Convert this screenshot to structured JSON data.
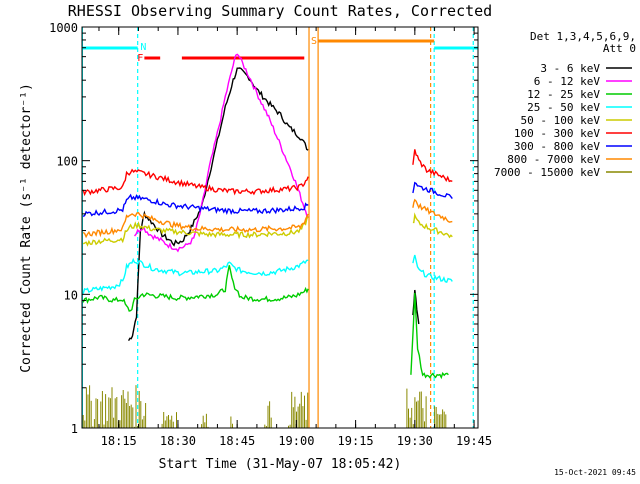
{
  "chart_data": {
    "type": "line",
    "title": "RHESSI Observing Summary Count Rates, Corrected",
    "xlabel": "Start Time (31-May-07 18:05:42)",
    "ylabel": "Corrected Count Rate (s⁻¹ detector⁻¹)",
    "x_unit": "minutes after 18:00 UT",
    "x_ticks": [
      {
        "x": 15,
        "label": "18:15"
      },
      {
        "x": 30,
        "label": "18:30"
      },
      {
        "x": 45,
        "label": "18:45"
      },
      {
        "x": 60,
        "label": "19:00"
      },
      {
        "x": 75,
        "label": "19:15"
      },
      {
        "x": 90,
        "label": "19:30"
      },
      {
        "x": 105,
        "label": "19:45"
      }
    ],
    "y_ticks": [
      {
        "y": 1,
        "label": "1"
      },
      {
        "y": 10,
        "label": "10"
      },
      {
        "y": 100,
        "label": "100"
      },
      {
        "y": 1000,
        "label": "1000"
      }
    ],
    "xlim": [
      5.7,
      106
    ],
    "ylim": [
      1,
      1000
    ],
    "yscale": "log",
    "legend_title": "Det 1,3,4,5,6,9,",
    "legend_subtitle": "Att 0",
    "legend_position": "right",
    "timestamp": "15-Oct-2021 09:45",
    "series": [
      {
        "name": "3 - 6 keV",
        "color": "#000000",
        "points": [
          [
            17.5,
            4.5
          ],
          [
            18.5,
            5
          ],
          [
            19.5,
            7
          ],
          [
            20.5,
            30
          ],
          [
            21.5,
            40
          ],
          [
            24,
            33
          ],
          [
            26,
            28
          ],
          [
            29,
            24
          ],
          [
            31,
            25
          ],
          [
            33,
            30
          ],
          [
            36,
            45
          ],
          [
            38,
            80
          ],
          [
            40,
            140
          ],
          [
            42,
            250
          ],
          [
            44,
            400
          ],
          [
            45,
            480
          ],
          [
            46,
            470
          ],
          [
            48,
            420
          ],
          [
            50,
            340
          ],
          [
            53,
            270
          ],
          [
            56,
            220
          ],
          [
            58,
            180
          ],
          [
            59,
            170
          ],
          [
            61,
            150
          ],
          [
            63,
            120
          ]
        ],
        "segment2": [
          [
            89.5,
            7
          ],
          [
            90,
            11
          ],
          [
            90.5,
            8
          ],
          [
            91,
            6
          ]
        ]
      },
      {
        "name": "6 - 12 keV",
        "color": "#ff00ff",
        "points": [
          [
            19,
            28
          ],
          [
            21,
            32
          ],
          [
            23,
            28
          ],
          [
            26,
            25
          ],
          [
            28,
            23
          ],
          [
            30,
            22
          ],
          [
            32,
            23
          ],
          [
            34,
            26
          ],
          [
            36,
            45
          ],
          [
            38,
            90
          ],
          [
            40,
            160
          ],
          [
            42,
            300
          ],
          [
            44,
            520
          ],
          [
            45,
            650
          ],
          [
            46,
            560
          ],
          [
            48,
            430
          ],
          [
            50,
            320
          ],
          [
            53,
            210
          ],
          [
            56,
            130
          ],
          [
            59,
            80
          ],
          [
            62,
            45
          ],
          [
            63,
            38
          ]
        ],
        "segment2": []
      },
      {
        "name": "12 - 25 keV",
        "color": "#00cc00",
        "points": [
          [
            6,
            9
          ],
          [
            10,
            9.5
          ],
          [
            14,
            9
          ],
          [
            16,
            9.2
          ],
          [
            17,
            8
          ],
          [
            18,
            7.5
          ],
          [
            19,
            9
          ],
          [
            21,
            10
          ],
          [
            24,
            9.8
          ],
          [
            27,
            9.6
          ],
          [
            30,
            9.4
          ],
          [
            33,
            9.5
          ],
          [
            37,
            9.8
          ],
          [
            40,
            10
          ],
          [
            42,
            11
          ],
          [
            43,
            16
          ],
          [
            44,
            12
          ],
          [
            46,
            9.5
          ],
          [
            49,
            9.3
          ],
          [
            52,
            9.2
          ],
          [
            55,
            9.3
          ],
          [
            58,
            9.5
          ],
          [
            60,
            9.8
          ],
          [
            62,
            10.5
          ],
          [
            63,
            11
          ]
        ],
        "segment2": [
          [
            89,
            2.5
          ],
          [
            90,
            10
          ],
          [
            90.7,
            4
          ],
          [
            92,
            2.5
          ],
          [
            96,
            2.5
          ],
          [
            98.5,
            2.5
          ]
        ]
      },
      {
        "name": "25 - 50 keV",
        "color": "#00ffff",
        "points": [
          [
            6,
            10.5
          ],
          [
            10,
            11
          ],
          [
            14,
            11.5
          ],
          [
            16,
            12.5
          ],
          [
            17,
            16
          ],
          [
            18,
            17
          ],
          [
            19,
            18
          ],
          [
            21,
            17
          ],
          [
            24,
            15.5
          ],
          [
            27,
            15
          ],
          [
            30,
            14.5
          ],
          [
            33,
            14.5
          ],
          [
            36,
            14.8
          ],
          [
            40,
            15
          ],
          [
            42,
            16
          ],
          [
            43,
            17
          ],
          [
            44,
            16
          ],
          [
            46,
            15
          ],
          [
            49,
            14.6
          ],
          [
            52,
            14.4
          ],
          [
            55,
            14.8
          ],
          [
            58,
            15.5
          ],
          [
            61,
            16.5
          ],
          [
            63,
            18
          ]
        ],
        "segment2": [
          [
            89.5,
            17
          ],
          [
            90,
            19
          ],
          [
            91,
            15
          ],
          [
            94,
            13.5
          ],
          [
            97,
            13
          ],
          [
            99.5,
            12.5
          ]
        ]
      },
      {
        "name": "50 - 100 keV",
        "color": "#cccc00",
        "points": [
          [
            6,
            24
          ],
          [
            10,
            25
          ],
          [
            14,
            25.5
          ],
          [
            16,
            26
          ],
          [
            17,
            30
          ],
          [
            18,
            32
          ],
          [
            20,
            33
          ],
          [
            23,
            31
          ],
          [
            26,
            30
          ],
          [
            29,
            29.5
          ],
          [
            32,
            29
          ],
          [
            35,
            28.5
          ],
          [
            38,
            28
          ],
          [
            41,
            28
          ],
          [
            44,
            28
          ],
          [
            47,
            28
          ],
          [
            50,
            28
          ],
          [
            53,
            28.5
          ],
          [
            56,
            28.5
          ],
          [
            59,
            29
          ],
          [
            61,
            30
          ],
          [
            62,
            33
          ],
          [
            63,
            38
          ]
        ],
        "segment2": [
          [
            89.5,
            34
          ],
          [
            90,
            38
          ],
          [
            91,
            34
          ],
          [
            94,
            31
          ],
          [
            97,
            29
          ],
          [
            99.5,
            27
          ]
        ]
      },
      {
        "name": "100 - 300 keV",
        "color": "#ff0000",
        "points": [
          [
            6,
            58
          ],
          [
            10,
            60
          ],
          [
            14,
            62
          ],
          [
            16,
            63
          ],
          [
            17,
            80
          ],
          [
            18,
            83
          ],
          [
            20,
            82
          ],
          [
            23,
            78
          ],
          [
            26,
            74
          ],
          [
            29,
            70
          ],
          [
            32,
            67
          ],
          [
            35,
            64
          ],
          [
            38,
            62
          ],
          [
            41,
            60
          ],
          [
            44,
            59
          ],
          [
            47,
            59
          ],
          [
            50,
            59
          ],
          [
            53,
            60
          ],
          [
            56,
            61
          ],
          [
            59,
            62
          ],
          [
            61,
            64
          ],
          [
            62,
            68
          ],
          [
            63,
            76
          ]
        ],
        "segment2": [
          [
            89.5,
            90
          ],
          [
            90,
            120
          ],
          [
            91,
            100
          ],
          [
            93,
            85
          ],
          [
            96,
            78
          ],
          [
            99.5,
            70
          ]
        ]
      },
      {
        "name": "300 - 800 keV",
        "color": "#0000ff",
        "points": [
          [
            6,
            40
          ],
          [
            10,
            41
          ],
          [
            14,
            42
          ],
          [
            16,
            43
          ],
          [
            17,
            50
          ],
          [
            18,
            53
          ],
          [
            21,
            52
          ],
          [
            24,
            50
          ],
          [
            27,
            47
          ],
          [
            30,
            46
          ],
          [
            33,
            45
          ],
          [
            36,
            44
          ],
          [
            39,
            43
          ],
          [
            42,
            42.5
          ],
          [
            45,
            42
          ],
          [
            48,
            42
          ],
          [
            51,
            42
          ],
          [
            54,
            42.5
          ],
          [
            57,
            43
          ],
          [
            60,
            44
          ],
          [
            62,
            45
          ],
          [
            63,
            47
          ]
        ],
        "segment2": [
          [
            89.5,
            58
          ],
          [
            90,
            70
          ],
          [
            91,
            64
          ],
          [
            94,
            60
          ],
          [
            97,
            56
          ],
          [
            99.5,
            52
          ]
        ]
      },
      {
        "name": "800 - 7000 keV",
        "color": "#ff8800",
        "points": [
          [
            6,
            28
          ],
          [
            10,
            29
          ],
          [
            14,
            30
          ],
          [
            16,
            31
          ],
          [
            17,
            38
          ],
          [
            18,
            40
          ],
          [
            20,
            40
          ],
          [
            23,
            37
          ],
          [
            26,
            35
          ],
          [
            29,
            33
          ],
          [
            32,
            32
          ],
          [
            35,
            31
          ],
          [
            38,
            31
          ],
          [
            41,
            30.5
          ],
          [
            44,
            30.5
          ],
          [
            47,
            30.5
          ],
          [
            50,
            30.5
          ],
          [
            53,
            31
          ],
          [
            56,
            31
          ],
          [
            59,
            31.5
          ],
          [
            61,
            32
          ],
          [
            62,
            35
          ],
          [
            63,
            40
          ]
        ],
        "segment2": [
          [
            89.5,
            45
          ],
          [
            90,
            52
          ],
          [
            91,
            46
          ],
          [
            94,
            41
          ],
          [
            97,
            38
          ],
          [
            99.5,
            35
          ]
        ]
      },
      {
        "name": "7000 - 15000 keV",
        "color": "#888800",
        "points": [],
        "noise": [
          [
            6,
            22,
            1,
            2.1
          ],
          [
            26,
            30,
            1,
            1.5
          ],
          [
            36,
            38,
            1,
            1.3
          ],
          [
            43,
            44,
            1,
            1.3
          ],
          [
            52,
            54,
            1,
            1.6
          ],
          [
            58,
            63,
            1,
            1.9
          ],
          [
            88,
            93,
            1,
            2.0
          ],
          [
            95,
            98,
            1,
            1.5
          ]
        ]
      }
    ],
    "flag_labels": {
      "n": "N",
      "f": "F",
      "s": "S"
    },
    "flags": {
      "night": [
        [
          5.7,
          19.8
        ],
        [
          94.9,
          106
        ]
      ],
      "flare": [
        [
          21.5,
          25.5
        ],
        [
          31,
          62
        ]
      ],
      "saa": [
        [
          65.5,
          94.9
        ]
      ]
    },
    "verticals": {
      "cyan": [
        19.8,
        94.9,
        104.8
      ],
      "orange": [
        63.2,
        65.5,
        94.0
      ],
      "cyan_solid": [
        5.8
      ]
    }
  }
}
